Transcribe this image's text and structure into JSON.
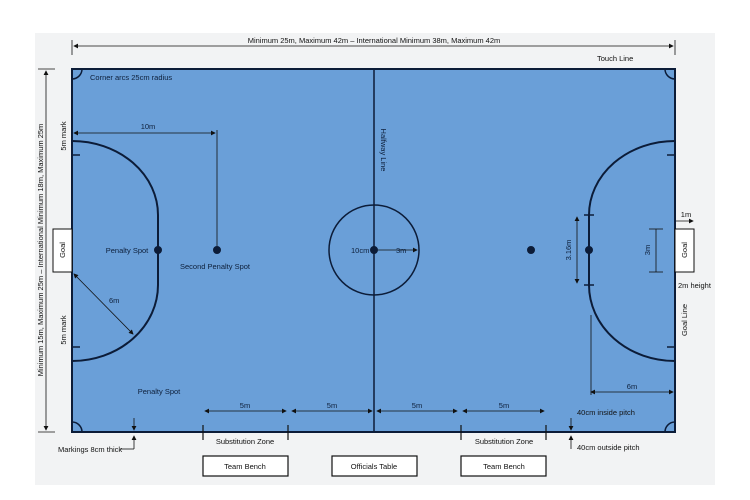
{
  "labels": {
    "length": "Minimum 25m, Maximum 42m – International Minimum 38m, Maximum 42m",
    "width": "Minimum 15m, Maximum 25m – International Minimum 18m, Maximum 25m",
    "touch_line": "Touch Line",
    "corner_arcs": "Corner arcs 25cm radius",
    "halfway_line": "Halfway Line",
    "ten_m": "10m",
    "five_m_mark_top": "5m mark",
    "five_m_mark_bottom": "5m mark",
    "goal_left": "Goal",
    "goal_right": "Goal",
    "penalty_spot_left": "Penalty Spot",
    "second_penalty_spot": "Second Penalty Spot",
    "six_m_radius": "6m",
    "penalty_spot_bottom": "Penalty Spot",
    "centre_spot": "10cm",
    "centre_radius": "3m",
    "spot_width": "3.16m",
    "goal_width": "3m",
    "goal_depth": "1m",
    "goal_height": "2m height",
    "goal_line": "Goal Line",
    "six_m_right": "6m",
    "sub_5m": [
      "5m",
      "5m",
      "5m",
      "5m"
    ],
    "inside_pitch": "40cm inside pitch",
    "outside_pitch": "40cm outside pitch",
    "markings": "Markings 8cm thick",
    "sub_zone_left": "Substitution Zone",
    "sub_zone_right": "Substitution Zone",
    "team_bench_left": "Team Bench",
    "officials_table": "Officials Table",
    "team_bench_right": "Team Bench"
  },
  "colors": {
    "pitch": "#6a9fd8",
    "lines": "#0c1c38",
    "panel": "#f2f3f4"
  }
}
